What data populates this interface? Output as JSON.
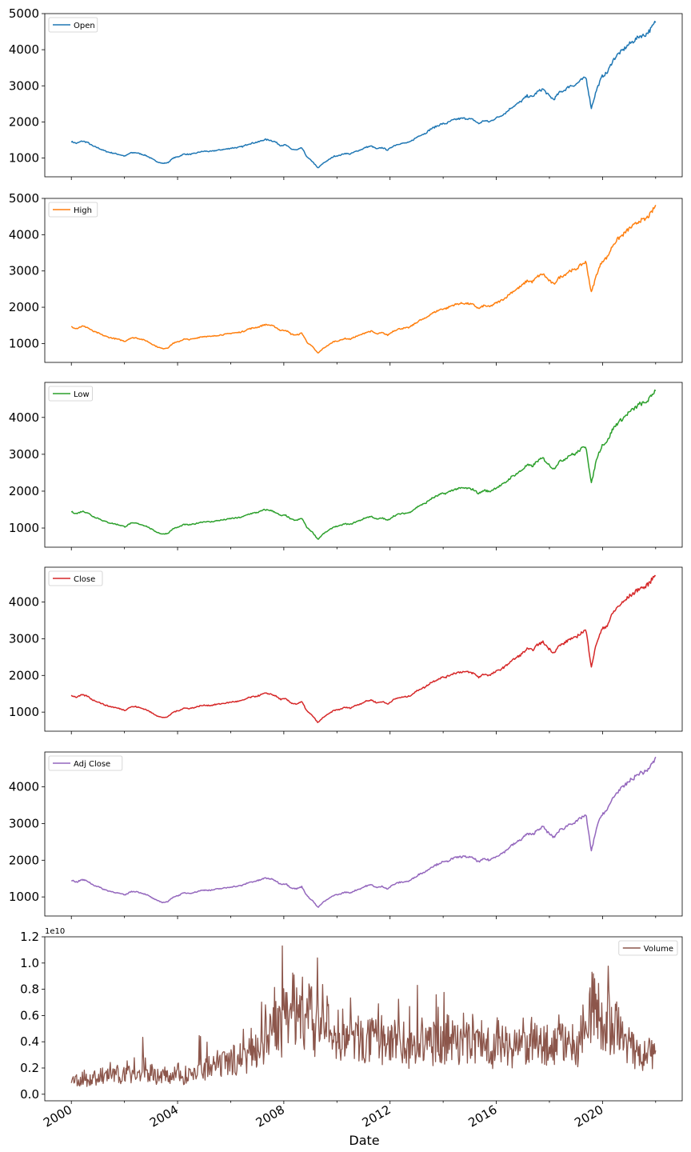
{
  "chart_data": [
    {
      "type": "line",
      "series": [
        {
          "name": "Open",
          "color": "#1f77b4"
        }
      ],
      "x_start": 2000.0,
      "x_end": 2022.0,
      "ylim": [
        480,
        5000
      ],
      "yticks": [
        "1000",
        "2000",
        "3000",
        "4000",
        "5000"
      ],
      "xticks": [
        "2000",
        "2004",
        "2008",
        "2012",
        "2016",
        "2020"
      ],
      "legend": "top-left",
      "values": [
        1455,
        1405,
        1470,
        1435,
        1330,
        1280,
        1210,
        1160,
        1130,
        1095,
        1050,
        1140,
        1150,
        1110,
        1065,
        980,
        900,
        850,
        870,
        1000,
        1040,
        1110,
        1100,
        1125,
        1170,
        1190,
        1180,
        1210,
        1230,
        1250,
        1280,
        1290,
        1320,
        1390,
        1420,
        1450,
        1510,
        1500,
        1450,
        1350,
        1360,
        1250,
        1220,
        1280,
        1020,
        900,
        720,
        860,
        950,
        1050,
        1070,
        1130,
        1110,
        1180,
        1230,
        1300,
        1330,
        1250,
        1290,
        1220,
        1330,
        1390,
        1410,
        1430,
        1530,
        1630,
        1680,
        1800,
        1870,
        1940,
        1960,
        2040,
        2080,
        2100,
        2090,
        2060,
        1950,
        2040,
        2000,
        2090,
        2160,
        2250,
        2390,
        2480,
        2580,
        2720,
        2690,
        2840,
        2910,
        2740,
        2620,
        2810,
        2880,
        3000,
        3020,
        3150,
        3240,
        2380,
        2900,
        3260,
        3370,
        3700,
        3880,
        4000,
        4150,
        4250,
        4380,
        4400,
        4550,
        4780
      ]
    },
    {
      "type": "line",
      "series": [
        {
          "name": "High",
          "color": "#ff7f0e"
        }
      ],
      "x_start": 2000.0,
      "x_end": 2022.0,
      "ylim": [
        480,
        5000
      ],
      "yticks": [
        "1000",
        "2000",
        "3000",
        "4000",
        "5000"
      ],
      "xticks": [
        "2000",
        "2004",
        "2008",
        "2012",
        "2016",
        "2020"
      ],
      "legend": "top-left",
      "values": [
        1465,
        1415,
        1480,
        1445,
        1340,
        1290,
        1220,
        1170,
        1140,
        1105,
        1060,
        1150,
        1160,
        1120,
        1075,
        990,
        910,
        860,
        880,
        1010,
        1050,
        1120,
        1110,
        1135,
        1180,
        1200,
        1190,
        1220,
        1240,
        1260,
        1290,
        1300,
        1330,
        1400,
        1430,
        1460,
        1520,
        1510,
        1460,
        1360,
        1370,
        1260,
        1230,
        1290,
        1030,
        910,
        730,
        870,
        960,
        1060,
        1080,
        1140,
        1120,
        1190,
        1240,
        1310,
        1340,
        1260,
        1300,
        1230,
        1340,
        1400,
        1420,
        1440,
        1540,
        1640,
        1690,
        1810,
        1880,
        1950,
        1970,
        2050,
        2090,
        2110,
        2100,
        2070,
        1960,
        2050,
        2010,
        2100,
        2170,
        2260,
        2400,
        2490,
        2590,
        2730,
        2700,
        2850,
        2920,
        2750,
        2630,
        2820,
        2890,
        3010,
        3030,
        3160,
        3250,
        2400,
        2910,
        3270,
        3380,
        3710,
        3890,
        4010,
        4160,
        4260,
        4390,
        4410,
        4560,
        4800
      ]
    },
    {
      "type": "line",
      "series": [
        {
          "name": "Low",
          "color": "#2ca02c"
        }
      ],
      "x_start": 2000.0,
      "x_end": 2022.0,
      "ylim": [
        480,
        4950
      ],
      "yticks": [
        "1000",
        "2000",
        "3000",
        "4000"
      ],
      "xticks": [
        "2000",
        "2004",
        "2008",
        "2012",
        "2016",
        "2020"
      ],
      "legend": "top-left",
      "values": [
        1440,
        1390,
        1455,
        1420,
        1315,
        1265,
        1195,
        1145,
        1115,
        1080,
        1035,
        1125,
        1135,
        1095,
        1050,
        965,
        885,
        835,
        855,
        985,
        1025,
        1095,
        1085,
        1110,
        1155,
        1175,
        1165,
        1195,
        1215,
        1235,
        1265,
        1275,
        1305,
        1375,
        1405,
        1435,
        1495,
        1485,
        1435,
        1335,
        1345,
        1235,
        1205,
        1265,
        1005,
        885,
        690,
        845,
        935,
        1035,
        1055,
        1115,
        1095,
        1165,
        1215,
        1285,
        1315,
        1235,
        1275,
        1205,
        1315,
        1375,
        1395,
        1415,
        1515,
        1615,
        1665,
        1785,
        1855,
        1925,
        1945,
        2025,
        2065,
        2085,
        2075,
        2045,
        1935,
        2025,
        1985,
        2075,
        2145,
        2235,
        2375,
        2465,
        2565,
        2705,
        2675,
        2825,
        2895,
        2725,
        2605,
        2795,
        2865,
        2985,
        3005,
        3135,
        3225,
        2200,
        2885,
        3245,
        3355,
        3685,
        3865,
        3985,
        4135,
        4235,
        4365,
        4385,
        4535,
        4760
      ]
    },
    {
      "type": "line",
      "series": [
        {
          "name": "Close",
          "color": "#d62728"
        }
      ],
      "x_start": 2000.0,
      "x_end": 2022.0,
      "ylim": [
        480,
        4950
      ],
      "yticks": [
        "1000",
        "2000",
        "3000",
        "4000"
      ],
      "xticks": [
        "2000",
        "2004",
        "2008",
        "2012",
        "2016",
        "2020"
      ],
      "legend": "top-left",
      "values": [
        1455,
        1405,
        1470,
        1435,
        1330,
        1280,
        1210,
        1160,
        1130,
        1095,
        1050,
        1140,
        1150,
        1110,
        1065,
        980,
        900,
        850,
        870,
        1000,
        1040,
        1110,
        1100,
        1125,
        1170,
        1190,
        1180,
        1210,
        1230,
        1250,
        1280,
        1290,
        1320,
        1390,
        1420,
        1450,
        1510,
        1500,
        1450,
        1350,
        1360,
        1250,
        1220,
        1280,
        1020,
        900,
        710,
        860,
        950,
        1050,
        1070,
        1130,
        1110,
        1180,
        1230,
        1300,
        1330,
        1250,
        1290,
        1220,
        1330,
        1390,
        1410,
        1430,
        1530,
        1630,
        1680,
        1800,
        1870,
        1940,
        1960,
        2040,
        2080,
        2100,
        2090,
        2060,
        1950,
        2040,
        2000,
        2090,
        2160,
        2250,
        2390,
        2480,
        2580,
        2720,
        2690,
        2840,
        2910,
        2740,
        2620,
        2810,
        2880,
        3000,
        3020,
        3150,
        3240,
        2240,
        2900,
        3260,
        3370,
        3700,
        3880,
        4000,
        4150,
        4250,
        4380,
        4400,
        4550,
        4770
      ]
    },
    {
      "type": "line",
      "series": [
        {
          "name": "Adj Close",
          "color": "#9467bd"
        }
      ],
      "x_start": 2000.0,
      "x_end": 2022.0,
      "ylim": [
        480,
        4950
      ],
      "yticks": [
        "1000",
        "2000",
        "3000",
        "4000"
      ],
      "xticks": [
        "2000",
        "2004",
        "2008",
        "2012",
        "2016",
        "2020"
      ],
      "legend": "top-left",
      "values": [
        1455,
        1405,
        1470,
        1435,
        1330,
        1280,
        1210,
        1160,
        1130,
        1095,
        1050,
        1140,
        1150,
        1110,
        1065,
        980,
        900,
        850,
        870,
        1000,
        1040,
        1110,
        1100,
        1125,
        1170,
        1190,
        1180,
        1210,
        1230,
        1250,
        1280,
        1290,
        1320,
        1390,
        1420,
        1450,
        1510,
        1500,
        1450,
        1350,
        1360,
        1250,
        1220,
        1280,
        1020,
        900,
        710,
        860,
        950,
        1050,
        1070,
        1130,
        1110,
        1180,
        1230,
        1300,
        1330,
        1250,
        1290,
        1220,
        1330,
        1390,
        1410,
        1430,
        1530,
        1630,
        1680,
        1800,
        1870,
        1940,
        1960,
        2040,
        2080,
        2100,
        2090,
        2060,
        1950,
        2040,
        2000,
        2090,
        2160,
        2250,
        2390,
        2480,
        2580,
        2720,
        2690,
        2840,
        2910,
        2740,
        2620,
        2810,
        2880,
        3000,
        3020,
        3150,
        3240,
        2240,
        2900,
        3260,
        3370,
        3700,
        3880,
        4000,
        4150,
        4250,
        4380,
        4400,
        4550,
        4770
      ]
    },
    {
      "type": "line",
      "series": [
        {
          "name": "Volume",
          "color": "#8c564b"
        }
      ],
      "x_start": 2000.0,
      "x_end": 2022.0,
      "ylim": [
        -0.05,
        1.2
      ],
      "yticks": [
        "0.0",
        "0.2",
        "0.4",
        "0.6",
        "0.8",
        "1.0",
        "1.2"
      ],
      "offset_text": "1e10",
      "xticks": [
        "2000",
        "2004",
        "2008",
        "2012",
        "2016",
        "2020"
      ],
      "xlabel": "Date",
      "legend": "top-right",
      "values": [
        0.08,
        0.12,
        0.1,
        0.13,
        0.09,
        0.14,
        0.11,
        0.15,
        0.12,
        0.18,
        0.13,
        0.16,
        0.12,
        0.2,
        0.14,
        0.17,
        0.13,
        0.22,
        0.15,
        0.18,
        0.13,
        0.16,
        0.12,
        0.15,
        0.14,
        0.17,
        0.12,
        0.15,
        0.18,
        0.14,
        0.19,
        0.16,
        0.21,
        0.18,
        0.24,
        0.2,
        0.25,
        0.22,
        0.28,
        0.25,
        0.3,
        0.27,
        0.35,
        0.33,
        0.42,
        0.38,
        0.48,
        0.4,
        0.58,
        0.45,
        0.62,
        0.5,
        0.72,
        0.55,
        0.68,
        0.52,
        0.62,
        0.48,
        0.58,
        0.45,
        0.52,
        0.4,
        0.48,
        0.42,
        0.5,
        0.38,
        0.45,
        0.4,
        0.46,
        0.35,
        0.42,
        0.38,
        0.48,
        0.4,
        0.44,
        0.36,
        0.42,
        0.34,
        0.4,
        0.3,
        0.38,
        0.33,
        0.44,
        0.35,
        0.42,
        0.38,
        0.5,
        0.36,
        0.45,
        0.38,
        0.48,
        0.4,
        0.44,
        0.36,
        0.46,
        0.38,
        0.42,
        0.35,
        0.4,
        0.34,
        0.44,
        0.36,
        0.4,
        0.35,
        0.38,
        0.34,
        0.42,
        0.36,
        0.41,
        0.36,
        0.39,
        0.34,
        0.4,
        0.36,
        0.45,
        0.38,
        0.42,
        0.36,
        0.38,
        0.34,
        0.6,
        0.55,
        0.7,
        0.62,
        0.58,
        0.48,
        0.56,
        0.45,
        0.52,
        0.4,
        0.45,
        0.35,
        0.32,
        0.28,
        0.3,
        0.26,
        0.34,
        0.25
      ]
    }
  ]
}
